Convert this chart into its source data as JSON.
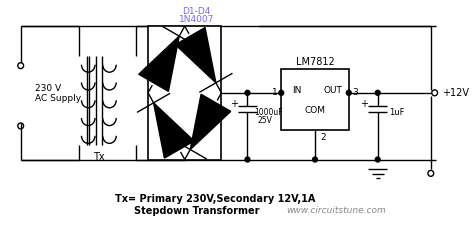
{
  "bg_color": "#ffffff",
  "line_color": "#000000",
  "text_color": "#000000",
  "purple_color": "#7B68EE",
  "gray_text": "#888888",
  "label_d1d4": "D1-D4",
  "label_1n4007": "1N4007",
  "label_lm7812": "LM7812",
  "label_in": "IN",
  "label_out": "OUT",
  "label_com": "COM",
  "label_cap1": "1000uF",
  "label_cap1v": "25V",
  "label_cap2": "1uF",
  "label_12v": "+12V",
  "label_230v": "230 V",
  "label_acsupply": "AC Supply",
  "label_tx": "Tx",
  "label_tx_desc1": "Tx= Primary 230V,Secondary 12V,1A",
  "label_tx_desc2": "Stepdown Transformer",
  "label_website": "www.circuitstune.com",
  "pin1": "1",
  "pin2": "2",
  "pin3": "3"
}
